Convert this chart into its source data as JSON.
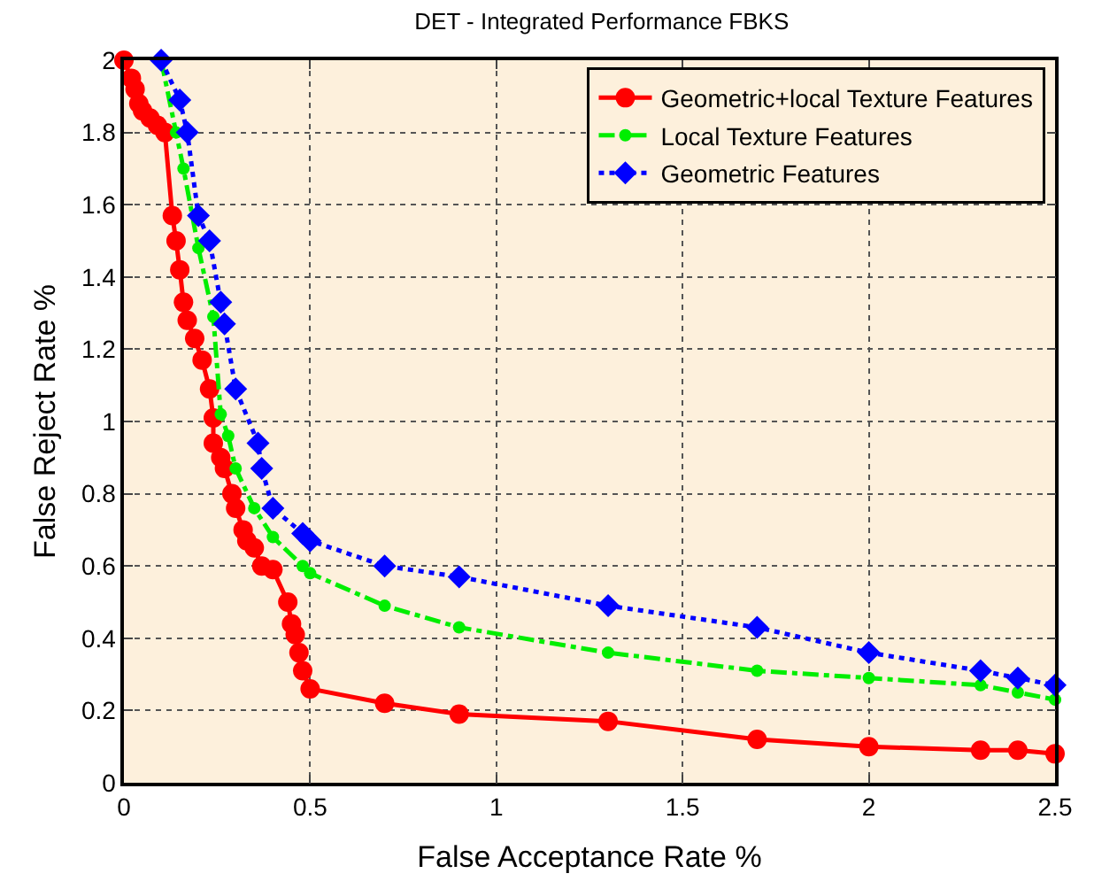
{
  "chart_data": {
    "type": "line",
    "title": "DET - Integrated Performance FBKS",
    "xlabel": "False Acceptance Rate %",
    "ylabel": "False Reject Rate %",
    "xlim": [
      0,
      2.5
    ],
    "xticks": [
      0,
      0.5,
      1,
      1.5,
      2,
      2.5
    ],
    "ylim": [
      0,
      2
    ],
    "yticks": [
      0,
      0.2,
      0.4,
      0.6,
      0.8,
      1,
      1.2,
      1.4,
      1.6,
      1.8,
      2
    ],
    "grid": true,
    "legend": "top right",
    "series": [
      {
        "name": "Geometric+local Texture Features",
        "color": "#ff0000",
        "marker": "circle",
        "line_style": "solid",
        "x": [
          0,
          0.02,
          0.03,
          0.04,
          0.05,
          0.07,
          0.09,
          0.11,
          0.13,
          0.14,
          0.15,
          0.16,
          0.17,
          0.19,
          0.21,
          0.23,
          0.24,
          0.24,
          0.26,
          0.27,
          0.29,
          0.3,
          0.32,
          0.33,
          0.35,
          0.37,
          0.4,
          0.44,
          0.45,
          0.46,
          0.47,
          0.48,
          0.5,
          0.7,
          0.9,
          1.3,
          1.7,
          2.0,
          2.3,
          2.4,
          2.5
        ],
        "values": [
          2,
          1.95,
          1.92,
          1.88,
          1.86,
          1.84,
          1.82,
          1.8,
          1.57,
          1.5,
          1.42,
          1.33,
          1.28,
          1.23,
          1.17,
          1.09,
          1.01,
          0.94,
          0.9,
          0.87,
          0.8,
          0.76,
          0.7,
          0.67,
          0.65,
          0.6,
          0.59,
          0.5,
          0.44,
          0.41,
          0.36,
          0.31,
          0.26,
          0.22,
          0.19,
          0.17,
          0.12,
          0.1,
          0.09,
          0.09,
          0.08
        ]
      },
      {
        "name": "Local Texture Features",
        "color": "#00ee00",
        "marker": "circle",
        "line_style": "dashdot",
        "x": [
          0.1,
          0.14,
          0.16,
          0.2,
          0.24,
          0.26,
          0.28,
          0.3,
          0.35,
          0.4,
          0.48,
          0.5,
          0.7,
          0.9,
          1.3,
          1.7,
          2.0,
          2.3,
          2.4,
          2.5
        ],
        "values": [
          2.0,
          1.8,
          1.7,
          1.48,
          1.29,
          1.02,
          0.96,
          0.87,
          0.76,
          0.68,
          0.6,
          0.58,
          0.49,
          0.43,
          0.36,
          0.31,
          0.29,
          0.27,
          0.25,
          0.23
        ]
      },
      {
        "name": "Geometric Features",
        "color": "#0000ff",
        "marker": "diamond",
        "line_style": "dotted",
        "x": [
          0.1,
          0.15,
          0.17,
          0.2,
          0.23,
          0.26,
          0.27,
          0.3,
          0.36,
          0.37,
          0.4,
          0.48,
          0.5,
          0.7,
          0.9,
          1.3,
          1.7,
          2.0,
          2.3,
          2.4,
          2.5
        ],
        "values": [
          2.0,
          1.89,
          1.8,
          1.57,
          1.5,
          1.33,
          1.27,
          1.09,
          0.94,
          0.87,
          0.76,
          0.69,
          0.67,
          0.6,
          0.57,
          0.49,
          0.43,
          0.36,
          0.31,
          0.29,
          0.27
        ]
      }
    ]
  }
}
